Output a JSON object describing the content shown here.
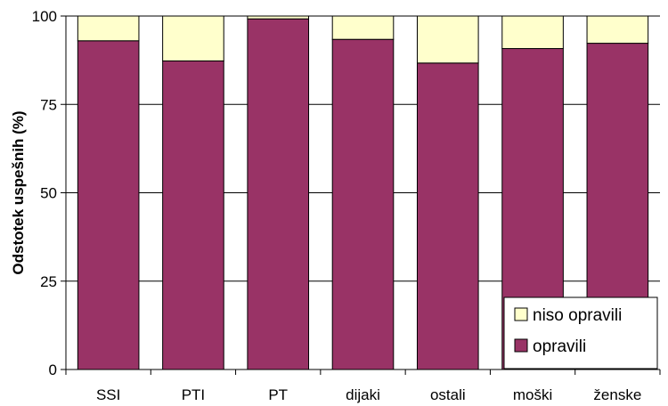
{
  "chart_data": {
    "type": "bar",
    "stacked": true,
    "percent_stacked": true,
    "categories": [
      "SSI",
      "PTI",
      "PT",
      "dijaki",
      "ostali",
      "moški",
      "ženske"
    ],
    "series": [
      {
        "name": "opravili",
        "color": "#993366",
        "values": [
          93,
          87.3,
          99.2,
          93.4,
          86.7,
          90.8,
          92.3
        ]
      },
      {
        "name": "niso opravili",
        "color": "#FFFFCC",
        "values": [
          7,
          12.7,
          0.8,
          6.6,
          13.3,
          9.2,
          7.7
        ]
      }
    ],
    "title": "",
    "xlabel": "",
    "ylabel": "Odstotek uspešnih (%)",
    "ylim": [
      0,
      100
    ],
    "yticks": [
      0,
      25,
      50,
      75,
      100
    ],
    "grid": true,
    "legend_position": "bottom-right",
    "legend_order": [
      "niso opravili",
      "opravili"
    ]
  }
}
